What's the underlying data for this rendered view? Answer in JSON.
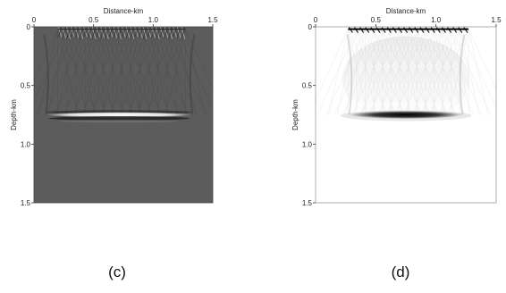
{
  "figures": [
    {
      "caption": "(c)",
      "colormap": "gray-balanced",
      "background_color": "#5c5c5c",
      "chart_data": {
        "type": "heatmap",
        "xlabel": "Distance-km",
        "ylabel": "Depth-km",
        "xlim": [
          0,
          1.5
        ],
        "ylim": [
          0,
          1.5
        ],
        "x_axis_position": "top",
        "y_axis_inverted": true,
        "x_ticks": [
          0,
          0.5,
          1.0,
          1.5
        ],
        "x_tick_labels": [
          "0",
          "0.5",
          "1.0",
          "1.5"
        ],
        "y_ticks": [
          0,
          0.5,
          1.0,
          1.5
        ],
        "y_tick_labels": [
          "0",
          "0.5",
          "1.0",
          "1.5"
        ],
        "reflector": {
          "depth_km": 0.75,
          "x_start_km": 0.1,
          "x_end_km": 1.33
        },
        "source_row": {
          "depth_km": 0.02,
          "x_start_km": 0.2,
          "x_end_km": 1.27
        }
      }
    },
    {
      "caption": "(d)",
      "colormap": "white-black",
      "background_color": "#ffffff",
      "chart_data": {
        "type": "heatmap",
        "xlabel": "Distance-km",
        "ylabel": "Depth-km",
        "xlim": [
          0,
          1.5
        ],
        "ylim": [
          0,
          1.5
        ],
        "x_axis_position": "top",
        "y_axis_inverted": true,
        "x_ticks": [
          0,
          0.5,
          1.0,
          1.5
        ],
        "x_tick_labels": [
          "0",
          "0.5",
          "1.0",
          "1.5"
        ],
        "y_ticks": [
          0,
          0.5,
          1.0,
          1.5
        ],
        "y_tick_labels": [
          "0",
          "0.5",
          "1.0",
          "1.5"
        ],
        "reflector": {
          "depth_km": 0.75,
          "x_start_km": 0.28,
          "x_end_km": 1.22
        },
        "source_row": {
          "depth_km": 0.02,
          "x_start_km": 0.27,
          "x_end_km": 1.27
        }
      }
    }
  ]
}
